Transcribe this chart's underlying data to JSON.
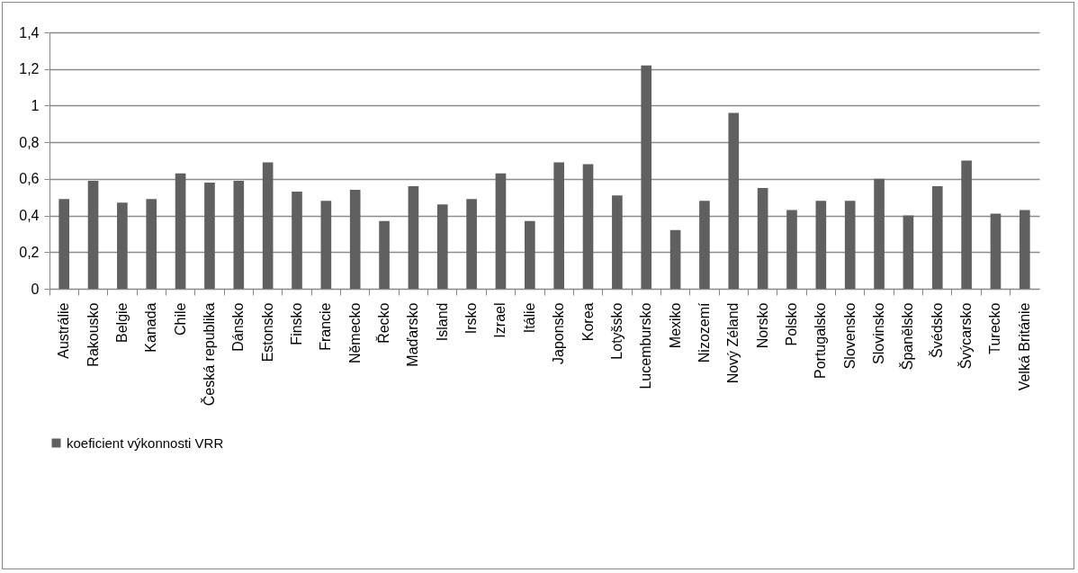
{
  "chart_data": {
    "type": "bar",
    "categories": [
      "Austrálie",
      "Rakousko",
      "Belgie",
      "Kanada",
      "Chile",
      "Česká republika",
      "Dánsko",
      "Estonsko",
      "Finsko",
      "Francie",
      "Německo",
      "Řecko",
      "Maďarsko",
      "Island",
      "Irsko",
      "Izrael",
      "Itálie",
      "Japonsko",
      "Korea",
      "Lotyšsko",
      "Lucembursko",
      "Mexiko",
      "Nizozemí",
      "Nový Zéland",
      "Norsko",
      "Polsko",
      "Portugalsko",
      "Slovensko",
      "Slovinsko",
      "Španělsko",
      "Švédsko",
      "Švýcarsko",
      "Turecko",
      "Velká Británie"
    ],
    "series": [
      {
        "name": "koeficient výkonnosti VRR",
        "color": "#606060",
        "values": [
          0.49,
          0.59,
          0.47,
          0.49,
          0.63,
          0.58,
          0.59,
          0.69,
          0.53,
          0.48,
          0.54,
          0.37,
          0.56,
          0.46,
          0.49,
          0.63,
          0.37,
          0.69,
          0.68,
          0.51,
          1.22,
          0.32,
          0.48,
          0.96,
          0.55,
          0.43,
          0.48,
          0.48,
          0.6,
          0.4,
          0.56,
          0.7,
          0.41,
          0.43
        ]
      }
    ],
    "ylim": [
      0,
      1.4
    ],
    "yticks": [
      0,
      {
        "value": 0.2,
        "label": "0,2"
      },
      {
        "value": 0.4,
        "label": "0,4"
      },
      {
        "value": 0.6,
        "label": "0,6"
      },
      {
        "value": 0.8,
        "label": "0,8"
      },
      1,
      {
        "value": 1.2,
        "label": "1,2"
      },
      {
        "value": 1.4,
        "label": "1,4"
      }
    ],
    "grid": "y",
    "legend": "bottom"
  }
}
